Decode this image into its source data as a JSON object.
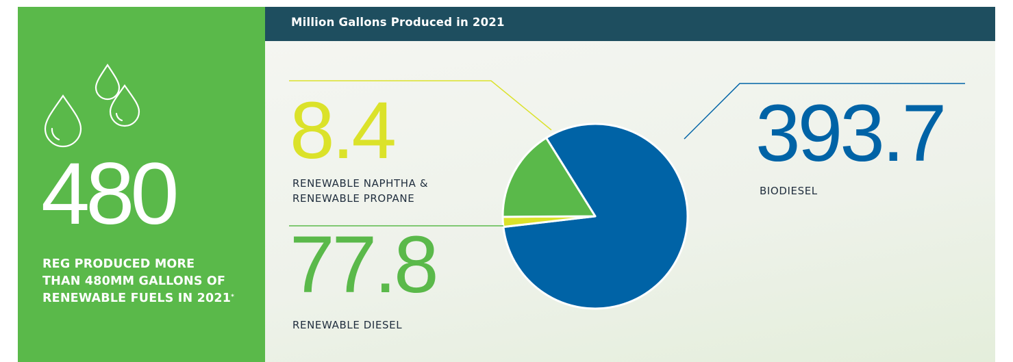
{
  "left_panel": {
    "total_value": "480",
    "caption_lines": [
      "REG PRODUCED MORE",
      "THAN 480MM GALLONS OF",
      "RENEWABLE FUELS IN 2021"
    ],
    "caption_mark": "*"
  },
  "colors": {
    "panel_green": "#5ab94a",
    "header_navy": "#1e4e5f",
    "biodiesel_blue": "#0063a6",
    "renewable_diesel_green": "#5ab94a",
    "naphtha_yellow": "#dbe22a"
  },
  "chart_data": {
    "type": "pie",
    "title": "Million Gallons Produced in 2021",
    "unit": "Million Gallons",
    "slices": [
      {
        "label": "BIODIESEL",
        "value": 393.7,
        "display": "393.7",
        "color": "#0063a6"
      },
      {
        "label_lines": [
          "RENEWABLE NAPHTHA &",
          "RENEWABLE PROPANE"
        ],
        "value": 8.4,
        "display": "8.4",
        "color": "#dbe22a"
      },
      {
        "label": "RENEWABLE DIESEL",
        "value": 77.8,
        "display": "77.8",
        "color": "#5ab94a"
      }
    ]
  }
}
